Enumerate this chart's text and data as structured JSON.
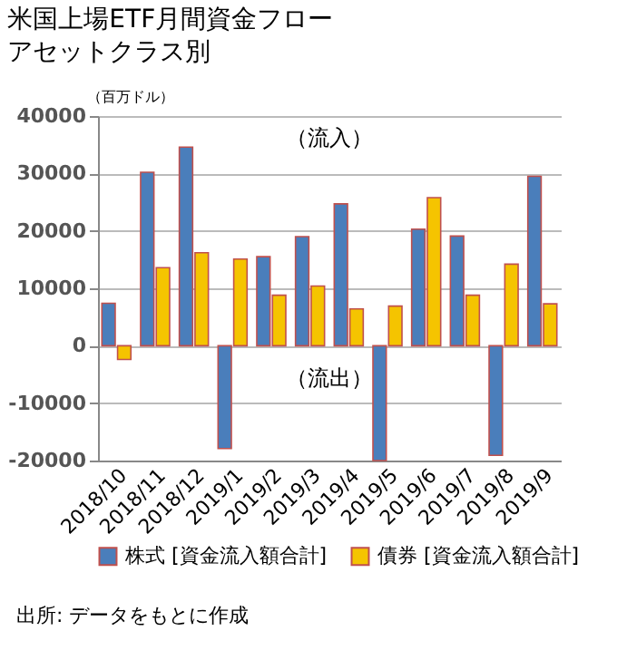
{
  "chart_data": {
    "type": "bar",
    "title": "米国上場ETF月間資金フロー",
    "subtitle": "アセットクラス別",
    "categories": [
      "2018/10",
      "2018/11",
      "2018/12",
      "2019/1",
      "2019/2",
      "2019/3",
      "2019/4",
      "2019/5",
      "2019/6",
      "2019/7",
      "2019/8",
      "2019/9"
    ],
    "series": [
      {
        "name": "株式 [資金流入額合計]",
        "color": "#4a7ebb",
        "values": [
          7400,
          30200,
          34600,
          -17900,
          15500,
          19000,
          24700,
          -20000,
          20300,
          19100,
          -19100,
          29500
        ]
      },
      {
        "name": "債券 [資金流入額合計]",
        "color": "#f5c400",
        "values": [
          -2400,
          13600,
          16200,
          15100,
          8800,
          10400,
          6400,
          6900,
          25800,
          8800,
          14200,
          7300
        ]
      }
    ],
    "ylim": [
      -20000,
      40000
    ],
    "yticks": [
      -20000,
      -10000,
      0,
      10000,
      20000,
      30000,
      40000
    ],
    "grid": "y",
    "legend": "bottom",
    "annotations": [
      "（百万ドル）",
      "（流入）",
      "（流出）",
      "出所: データをもとに作成"
    ]
  }
}
